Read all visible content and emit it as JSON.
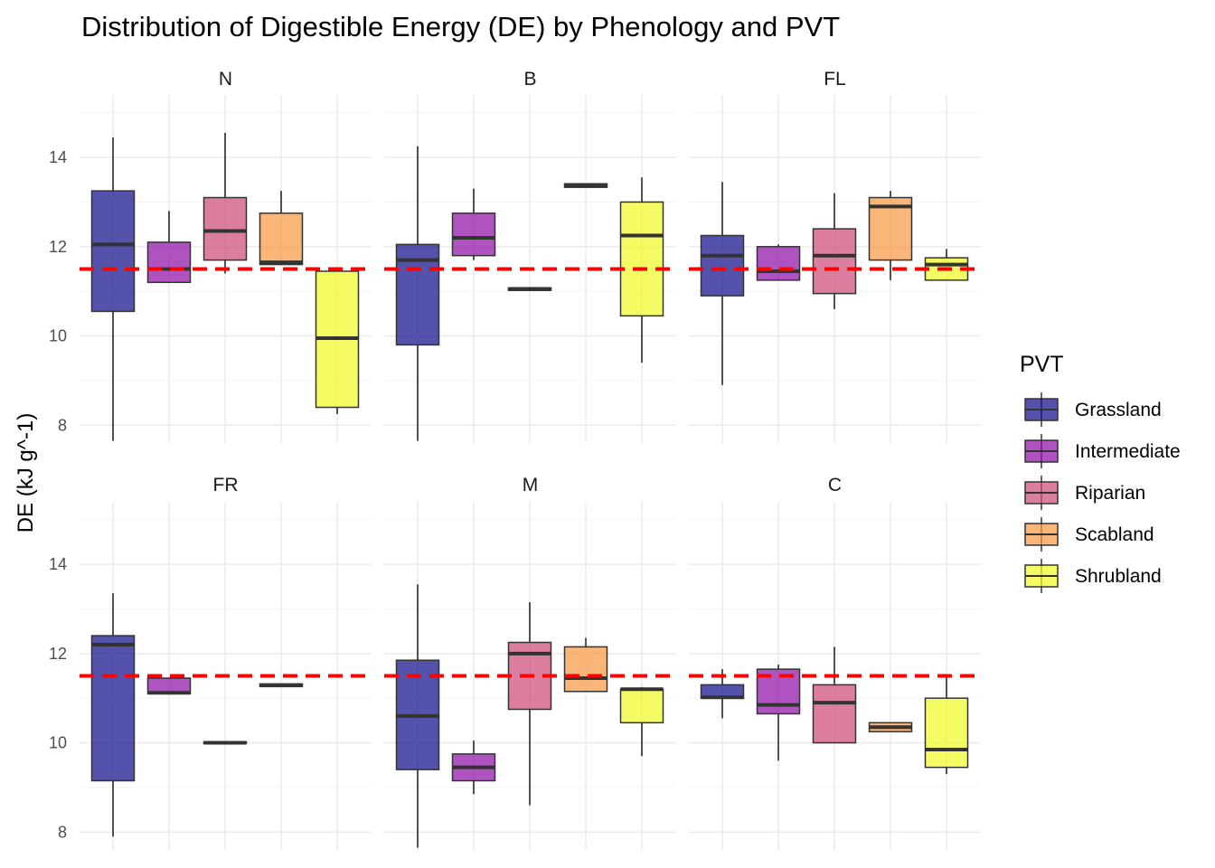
{
  "chart_data": {
    "type": "boxplot",
    "title": "Distribution of Digestible Energy (DE) by Phenology and PVT",
    "ylabel": "DE (kJ g^-1)",
    "xlabel": "",
    "ylim": [
      7.6,
      15.4
    ],
    "yticks": [
      8,
      10,
      12,
      14
    ],
    "reference_line": {
      "value": 11.5,
      "color": "#ff0000",
      "style": "dashed"
    },
    "grid": true,
    "legend": {
      "title": "PVT",
      "placement": "right",
      "entries": [
        "Grassland",
        "Intermediate",
        "Riparian",
        "Scabland",
        "Shrubland"
      ]
    },
    "series_colors": {
      "Grassland": "#0d0887",
      "Intermediate": "#8b0aa5",
      "Riparian": "#cc4778",
      "Scabland": "#f89540",
      "Shrubland": "#f0f921"
    },
    "panels": [
      {
        "label": "N",
        "boxes": [
          {
            "pvt": "Grassland",
            "min": 7.65,
            "q1": 10.55,
            "median": 12.05,
            "q3": 13.25,
            "max": 14.45
          },
          {
            "pvt": "Intermediate",
            "min": 11.2,
            "q1": 11.2,
            "median": 11.5,
            "q3": 12.1,
            "max": 12.8
          },
          {
            "pvt": "Riparian",
            "min": 11.4,
            "q1": 11.7,
            "median": 12.35,
            "q3": 13.1,
            "max": 14.55
          },
          {
            "pvt": "Scabland",
            "min": 11.6,
            "q1": 11.6,
            "median": 11.65,
            "q3": 12.75,
            "max": 13.25
          },
          {
            "pvt": "Shrubland",
            "min": 8.25,
            "q1": 8.4,
            "median": 9.95,
            "q3": 11.45,
            "max": 11.45
          }
        ]
      },
      {
        "label": "B",
        "boxes": [
          {
            "pvt": "Grassland",
            "min": 7.65,
            "q1": 9.8,
            "median": 11.7,
            "q3": 12.05,
            "max": 14.25
          },
          {
            "pvt": "Intermediate",
            "min": 11.7,
            "q1": 11.8,
            "median": 12.2,
            "q3": 12.75,
            "max": 13.3
          },
          {
            "pvt": "Riparian",
            "min": 11.02,
            "q1": 11.02,
            "median": 11.05,
            "q3": 11.08,
            "max": 11.08
          },
          {
            "pvt": "Scabland",
            "min": 13.33,
            "q1": 13.33,
            "median": 13.37,
            "q3": 13.41,
            "max": 13.41
          },
          {
            "pvt": "Shrubland",
            "min": 9.4,
            "q1": 10.45,
            "median": 12.25,
            "q3": 13.0,
            "max": 13.55
          }
        ]
      },
      {
        "label": "FL",
        "boxes": [
          {
            "pvt": "Grassland",
            "min": 8.9,
            "q1": 10.9,
            "median": 11.8,
            "q3": 12.25,
            "max": 13.45
          },
          {
            "pvt": "Intermediate",
            "min": 11.25,
            "q1": 11.25,
            "median": 11.45,
            "q3": 12.0,
            "max": 12.05
          },
          {
            "pvt": "Riparian",
            "min": 10.6,
            "q1": 10.95,
            "median": 11.8,
            "q3": 12.4,
            "max": 13.2
          },
          {
            "pvt": "Scabland",
            "min": 11.25,
            "q1": 11.7,
            "median": 12.9,
            "q3": 13.1,
            "max": 13.25
          },
          {
            "pvt": "Shrubland",
            "min": 11.25,
            "q1": 11.25,
            "median": 11.6,
            "q3": 11.75,
            "max": 11.95
          }
        ]
      },
      {
        "label": "FR",
        "boxes": [
          {
            "pvt": "Grassland",
            "min": 7.9,
            "q1": 9.15,
            "median": 12.2,
            "q3": 12.4,
            "max": 13.35
          },
          {
            "pvt": "Intermediate",
            "min": 11.1,
            "q1": 11.1,
            "median": 11.12,
            "q3": 11.45,
            "max": 11.45
          },
          {
            "pvt": "Riparian",
            "min": 9.99,
            "q1": 9.99,
            "median": 10.0,
            "q3": 10.02,
            "max": 10.02
          },
          {
            "pvt": "Scabland",
            "min": 11.26,
            "q1": 11.26,
            "median": 11.29,
            "q3": 11.32,
            "max": 11.32
          }
        ]
      },
      {
        "label": "M",
        "boxes": [
          {
            "pvt": "Grassland",
            "min": 7.65,
            "q1": 9.4,
            "median": 10.6,
            "q3": 11.85,
            "max": 13.55
          },
          {
            "pvt": "Intermediate",
            "min": 8.85,
            "q1": 9.15,
            "median": 9.45,
            "q3": 9.75,
            "max": 10.05
          },
          {
            "pvt": "Riparian",
            "min": 8.6,
            "q1": 10.75,
            "median": 12.0,
            "q3": 12.25,
            "max": 13.15
          },
          {
            "pvt": "Scabland",
            "min": 11.15,
            "q1": 11.15,
            "median": 11.45,
            "q3": 12.15,
            "max": 12.35
          },
          {
            "pvt": "Shrubland",
            "min": 9.7,
            "q1": 10.45,
            "median": 11.2,
            "q3": 11.2,
            "max": 11.25
          }
        ]
      },
      {
        "label": "C",
        "boxes": [
          {
            "pvt": "Grassland",
            "min": 10.55,
            "q1": 11.0,
            "median": 11.02,
            "q3": 11.3,
            "max": 11.65
          },
          {
            "pvt": "Intermediate",
            "min": 9.6,
            "q1": 10.65,
            "median": 10.85,
            "q3": 11.65,
            "max": 11.75
          },
          {
            "pvt": "Riparian",
            "min": 10.0,
            "q1": 10.0,
            "median": 10.9,
            "q3": 11.3,
            "max": 12.15
          },
          {
            "pvt": "Scabland",
            "min": 10.25,
            "q1": 10.25,
            "median": 10.35,
            "q3": 10.45,
            "max": 10.45
          },
          {
            "pvt": "Shrubland",
            "min": 9.3,
            "q1": 9.45,
            "median": 9.85,
            "q3": 11.0,
            "max": 11.5
          }
        ]
      }
    ]
  }
}
